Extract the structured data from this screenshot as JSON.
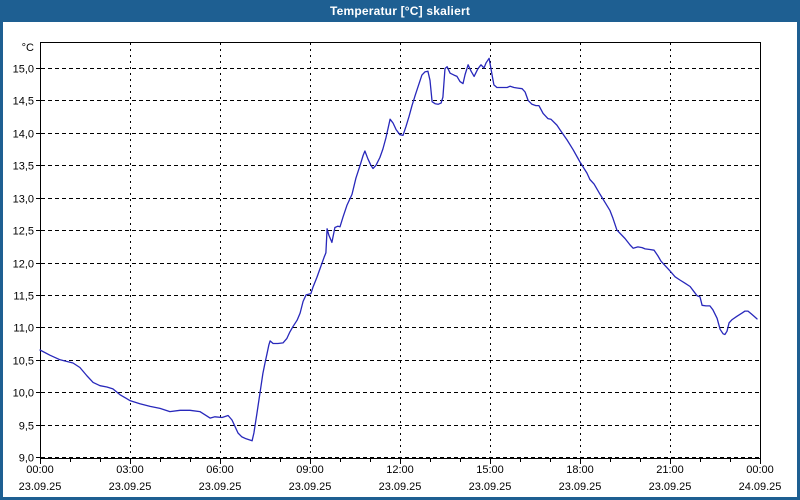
{
  "window": {
    "title": "Temperatur [°C] skaliert",
    "titlebar_color": "#1e5f92",
    "frame_color": "#1e5f92",
    "background_color": "#ffffff"
  },
  "chart_data": {
    "type": "line",
    "title": "Temperatur [°C] skaliert",
    "grid": "dashed",
    "legend": "none",
    "y_axis": {
      "unit_label": "°C",
      "min": 9.0,
      "max": 15.0,
      "tick_step": 0.5,
      "tick_labels": [
        "9,0",
        "9,5",
        "10,0",
        "10,5",
        "11,0",
        "11,5",
        "12,0",
        "12,5",
        "13,0",
        "13,5",
        "14,0",
        "14,5",
        "15,0"
      ]
    },
    "x_axis": {
      "range_hours": [
        0,
        24
      ],
      "minor_tick_every_hours": 1,
      "major_tick_every_hours": 3,
      "ticks": [
        {
          "hour": 0,
          "time": "00:00",
          "date": "23.09.25"
        },
        {
          "hour": 3,
          "time": "03:00",
          "date": "23.09.25"
        },
        {
          "hour": 6,
          "time": "06:00",
          "date": "23.09.25"
        },
        {
          "hour": 9,
          "time": "09:00",
          "date": "23.09.25"
        },
        {
          "hour": 12,
          "time": "12:00",
          "date": "23.09.25"
        },
        {
          "hour": 15,
          "time": "15:00",
          "date": "23.09.25"
        },
        {
          "hour": 18,
          "time": "18:00",
          "date": "23.09.25"
        },
        {
          "hour": 21,
          "time": "21:00",
          "date": "23.09.25"
        },
        {
          "hour": 24,
          "time": "00:00",
          "date": "24.09.25"
        }
      ]
    },
    "series": [
      {
        "name": "Temperatur",
        "color": "#2828bb",
        "points": [
          [
            0,
            10.65
          ],
          [
            0.33,
            10.57
          ],
          [
            0.67,
            10.5
          ],
          [
            1.1,
            10.45
          ],
          [
            1.33,
            10.38
          ],
          [
            1.57,
            10.25
          ],
          [
            1.77,
            10.15
          ],
          [
            2,
            10.1
          ],
          [
            2.23,
            10.08
          ],
          [
            2.43,
            10.05
          ],
          [
            2.67,
            9.96
          ],
          [
            3,
            9.87
          ],
          [
            3.33,
            9.82
          ],
          [
            3.67,
            9.78
          ],
          [
            4,
            9.75
          ],
          [
            4.33,
            9.7
          ],
          [
            4.67,
            9.72
          ],
          [
            5,
            9.72
          ],
          [
            5.33,
            9.7
          ],
          [
            5.67,
            9.6
          ],
          [
            5.83,
            9.62
          ],
          [
            6.07,
            9.61
          ],
          [
            6.27,
            9.64
          ],
          [
            6.4,
            9.57
          ],
          [
            6.5,
            9.47
          ],
          [
            6.6,
            9.37
          ],
          [
            6.73,
            9.31
          ],
          [
            6.87,
            9.28
          ],
          [
            7.07,
            9.25
          ],
          [
            7.13,
            9.37
          ],
          [
            7.23,
            9.67
          ],
          [
            7.33,
            9.98
          ],
          [
            7.43,
            10.29
          ],
          [
            7.5,
            10.45
          ],
          [
            7.57,
            10.6
          ],
          [
            7.63,
            10.73
          ],
          [
            7.67,
            10.79
          ],
          [
            7.77,
            10.75
          ],
          [
            7.93,
            10.75
          ],
          [
            8.1,
            10.76
          ],
          [
            8.23,
            10.83
          ],
          [
            8.33,
            10.93
          ],
          [
            8.43,
            11.01
          ],
          [
            8.57,
            11.11
          ],
          [
            8.67,
            11.22
          ],
          [
            8.77,
            11.4
          ],
          [
            8.87,
            11.5
          ],
          [
            9.03,
            11.52
          ],
          [
            9.1,
            11.62
          ],
          [
            9.23,
            11.77
          ],
          [
            9.33,
            11.9
          ],
          [
            9.47,
            12.08
          ],
          [
            9.53,
            12.15
          ],
          [
            9.57,
            12.52
          ],
          [
            9.63,
            12.42
          ],
          [
            9.73,
            12.31
          ],
          [
            9.83,
            12.54
          ],
          [
            9.93,
            12.56
          ],
          [
            10,
            12.55
          ],
          [
            10.1,
            12.7
          ],
          [
            10.23,
            12.88
          ],
          [
            10.4,
            13.05
          ],
          [
            10.53,
            13.3
          ],
          [
            10.67,
            13.5
          ],
          [
            10.77,
            13.65
          ],
          [
            10.83,
            13.72
          ],
          [
            10.93,
            13.6
          ],
          [
            11.03,
            13.5
          ],
          [
            11.1,
            13.45
          ],
          [
            11.2,
            13.5
          ],
          [
            11.33,
            13.62
          ],
          [
            11.43,
            13.75
          ],
          [
            11.53,
            13.92
          ],
          [
            11.67,
            14.21
          ],
          [
            11.77,
            14.15
          ],
          [
            11.87,
            14.05
          ],
          [
            12,
            13.97
          ],
          [
            12.1,
            13.96
          ],
          [
            12.2,
            14.1
          ],
          [
            12.3,
            14.25
          ],
          [
            12.4,
            14.42
          ],
          [
            12.5,
            14.57
          ],
          [
            12.6,
            14.71
          ],
          [
            12.73,
            14.89
          ],
          [
            12.83,
            14.94
          ],
          [
            12.93,
            14.95
          ],
          [
            13,
            14.81
          ],
          [
            13.07,
            14.48
          ],
          [
            13.17,
            14.45
          ],
          [
            13.27,
            14.44
          ],
          [
            13.37,
            14.46
          ],
          [
            13.43,
            14.55
          ],
          [
            13.5,
            14.99
          ],
          [
            13.57,
            15.02
          ],
          [
            13.67,
            14.92
          ],
          [
            13.8,
            14.89
          ],
          [
            13.9,
            14.87
          ],
          [
            14,
            14.79
          ],
          [
            14.1,
            14.76
          ],
          [
            14.17,
            14.9
          ],
          [
            14.27,
            15.05
          ],
          [
            14.37,
            14.95
          ],
          [
            14.47,
            14.87
          ],
          [
            14.6,
            14.99
          ],
          [
            14.7,
            15.05
          ],
          [
            14.8,
            15
          ],
          [
            14.87,
            15.08
          ],
          [
            14.97,
            15.15
          ],
          [
            15.07,
            14.89
          ],
          [
            15.13,
            14.74
          ],
          [
            15.23,
            14.7
          ],
          [
            15.4,
            14.7
          ],
          [
            15.57,
            14.7
          ],
          [
            15.67,
            14.72
          ],
          [
            15.8,
            14.7
          ],
          [
            15.93,
            14.69
          ],
          [
            16.07,
            14.68
          ],
          [
            16.17,
            14.63
          ],
          [
            16.27,
            14.5
          ],
          [
            16.4,
            14.44
          ],
          [
            16.53,
            14.42
          ],
          [
            16.63,
            14.42
          ],
          [
            16.77,
            14.3
          ],
          [
            16.93,
            14.22
          ],
          [
            17.03,
            14.21
          ],
          [
            17.23,
            14.12
          ],
          [
            17.33,
            14.05
          ],
          [
            17.57,
            13.89
          ],
          [
            17.77,
            13.74
          ],
          [
            18,
            13.55
          ],
          [
            18.23,
            13.38
          ],
          [
            18.33,
            13.28
          ],
          [
            18.47,
            13.21
          ],
          [
            18.67,
            13.05
          ],
          [
            18.83,
            12.93
          ],
          [
            19,
            12.8
          ],
          [
            19.1,
            12.68
          ],
          [
            19.23,
            12.5
          ],
          [
            19.5,
            12.37
          ],
          [
            19.67,
            12.27
          ],
          [
            19.77,
            12.22
          ],
          [
            19.93,
            12.24
          ],
          [
            20.07,
            12.23
          ],
          [
            20.17,
            12.21
          ],
          [
            20.33,
            12.2
          ],
          [
            20.47,
            12.19
          ],
          [
            20.6,
            12.1
          ],
          [
            20.7,
            12.02
          ],
          [
            20.9,
            11.92
          ],
          [
            21,
            11.87
          ],
          [
            21.17,
            11.78
          ],
          [
            21.33,
            11.73
          ],
          [
            21.5,
            11.68
          ],
          [
            21.67,
            11.63
          ],
          [
            21.8,
            11.55
          ],
          [
            21.9,
            11.49
          ],
          [
            22,
            11.47
          ],
          [
            22.07,
            11.34
          ],
          [
            22.2,
            11.33
          ],
          [
            22.33,
            11.33
          ],
          [
            22.43,
            11.27
          ],
          [
            22.57,
            11.14
          ],
          [
            22.67,
            10.97
          ],
          [
            22.77,
            10.9
          ],
          [
            22.83,
            10.89
          ],
          [
            22.9,
            10.94
          ],
          [
            22.97,
            11.07
          ],
          [
            23.07,
            11.12
          ],
          [
            23.23,
            11.17
          ],
          [
            23.4,
            11.22
          ],
          [
            23.5,
            11.25
          ],
          [
            23.6,
            11.25
          ],
          [
            23.73,
            11.2
          ],
          [
            23.83,
            11.16
          ],
          [
            23.9,
            11.13
          ]
        ]
      }
    ]
  }
}
